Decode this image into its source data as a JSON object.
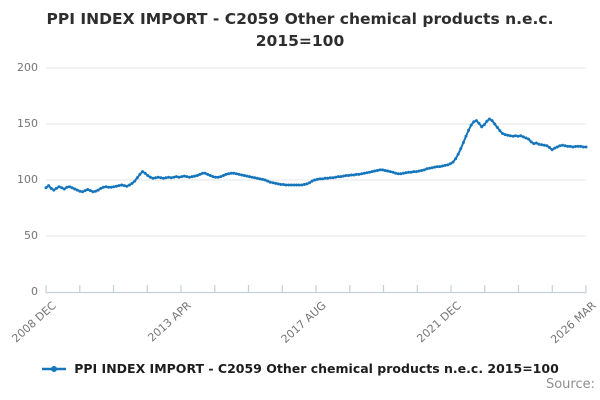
{
  "header": {
    "title_line1": "PPI INDEX IMPORT - C2059 Other chemical products n.e.c.",
    "title_line2": "2015=100"
  },
  "legend": {
    "label": "PPI INDEX IMPORT - C2059 Other chemical products n.e.c. 2015=100"
  },
  "footer": {
    "source_label": "Source:"
  },
  "colors": {
    "line": "#1576bc",
    "grid": "#e4e4e4",
    "axis": "#c3d0de",
    "tick_label": "#757575",
    "title_text": "#2e2e2e",
    "legend_text": "#1d1d1d",
    "source_text": "#8e8e8e"
  },
  "chart_data": {
    "type": "line",
    "title": "PPI INDEX IMPORT - C2059 Other chemical products n.e.c. 2015=100",
    "grid": "horizontal",
    "legend_position": "bottom",
    "x_axis": {
      "tick_labels": [
        "2008 DEC",
        "2013 APR",
        "2017 AUG",
        "2021 DEC",
        "2026 MAR"
      ],
      "minor_ticks_between_major": 3
    },
    "y_axis": {
      "ticks": [
        0,
        50,
        100,
        150,
        200
      ],
      "range": [
        0,
        200
      ]
    },
    "series": [
      {
        "name": "PPI INDEX IMPORT - C2059 Other chemical products n.e.c. 2015=100",
        "color": "#1576bc",
        "start": "2008-12",
        "frequency": "monthly",
        "values": [
          93,
          95,
          92.5,
          91,
          92.5,
          94,
          93,
          92,
          93.5,
          94,
          93,
          92,
          91,
          90,
          89.5,
          90.5,
          91.5,
          90.5,
          89.5,
          90,
          91,
          92.5,
          93.5,
          94,
          93.5,
          93.5,
          94,
          94.5,
          95,
          95.5,
          95,
          94.5,
          95.5,
          97,
          99,
          102,
          105,
          107.5,
          106,
          104,
          102.5,
          101.5,
          102,
          102.5,
          102,
          101.5,
          102,
          102.5,
          102,
          102.5,
          103,
          102.5,
          103,
          103.5,
          103,
          102.5,
          103,
          103.5,
          104,
          105,
          106,
          106,
          105,
          104,
          103,
          102.5,
          102.5,
          103,
          104,
          105,
          105.5,
          106,
          106,
          105.5,
          105,
          104.5,
          104,
          103.5,
          103,
          102.5,
          102,
          101.5,
          101,
          100.5,
          100,
          99,
          98,
          97.5,
          97,
          96.5,
          96,
          96,
          95.5,
          95.5,
          95.5,
          95.5,
          95.5,
          95.5,
          95.5,
          96,
          96.5,
          97.5,
          99,
          100,
          100.5,
          101,
          101,
          101.5,
          101.5,
          102,
          102,
          102.5,
          103,
          103,
          103.5,
          104,
          104,
          104.5,
          104.5,
          105,
          105,
          105.5,
          106,
          106.5,
          107,
          107.5,
          108,
          108.5,
          109,
          109,
          108.5,
          108,
          107.5,
          107,
          106,
          105.5,
          105.5,
          106,
          106.5,
          107,
          107,
          107.5,
          107.5,
          108,
          108.5,
          109,
          110,
          110.5,
          111,
          111.5,
          112,
          112,
          112.5,
          113,
          113.5,
          114.5,
          116,
          119,
          123,
          128,
          133.5,
          139,
          144.5,
          149,
          152,
          153,
          150.5,
          147.5,
          149.5,
          152.5,
          154.5,
          153,
          150,
          147,
          144,
          141.5,
          140.5,
          140,
          139.5,
          139,
          139.5,
          139,
          139.5,
          138.5,
          137.5,
          136.5,
          134,
          132.5,
          133,
          132,
          131.5,
          131,
          130.5,
          129,
          127,
          128.5,
          129.5,
          130.5,
          131,
          130.5,
          130,
          130,
          129.5,
          130,
          130,
          130,
          129.5,
          129.5
        ]
      }
    ]
  }
}
